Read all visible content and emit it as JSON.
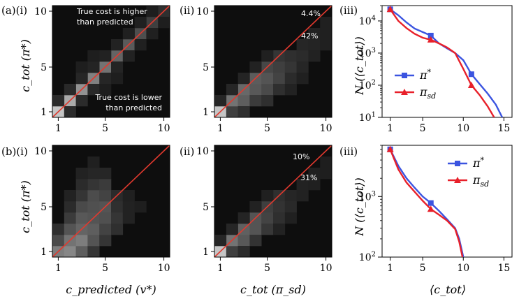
{
  "colors": {
    "pi_star": "#3b54e0",
    "pi_sd": "#e8202a",
    "diagonal": "#e0392e",
    "frame": "#000000"
  },
  "panel_labels": {
    "a_i": "(a)(i)",
    "a_ii": "(ii)",
    "a_iii": "(iii)",
    "b_i": "(b)(i)",
    "b_ii": "(ii)",
    "b_iii": "(iii)"
  },
  "axis_labels": {
    "ylabel_heat": "c_tot (π*)",
    "ylabel_line": "N (⟨c_tot⟩)",
    "xlabel_b_i": "c_predicted (v*)",
    "xlabel_b_ii": "c_tot (π_sd)",
    "xlabel_b_iii": "⟨c_tot⟩"
  },
  "heat_ticks": [
    "1",
    "5",
    "10"
  ],
  "line_xticks": [
    "1",
    "5",
    "10",
    "15"
  ],
  "annotations": {
    "a_i_upper": [
      "True cost is higher",
      "than predicted"
    ],
    "a_i_lower": [
      "True cost is lower",
      "than predicted"
    ],
    "a_ii_upper": "4.4%",
    "a_ii_lower": "42%",
    "b_ii_upper": "10%",
    "b_ii_lower": "31%"
  },
  "chart_data": [
    {
      "id": "a_i",
      "type": "heatmap",
      "title": "",
      "xlabel": "",
      "ylabel": "c_tot (π*)",
      "xlim": [
        0.5,
        10.5
      ],
      "ylim": [
        0.5,
        10.5
      ],
      "cells": [
        [
          1,
          1,
          0.85
        ],
        [
          2,
          2,
          0.72
        ],
        [
          3,
          3,
          0.6
        ],
        [
          4,
          4,
          0.52
        ],
        [
          5,
          5,
          0.45
        ],
        [
          6,
          6,
          0.38
        ],
        [
          7,
          7,
          0.33
        ],
        [
          8,
          8,
          0.27
        ],
        [
          9,
          9,
          0.2
        ],
        [
          10,
          10,
          0.12
        ],
        [
          1,
          2,
          0.1
        ],
        [
          2,
          1,
          0.1
        ],
        [
          2,
          3,
          0.09
        ],
        [
          3,
          2,
          0.1
        ],
        [
          3,
          4,
          0.08
        ],
        [
          4,
          3,
          0.09
        ],
        [
          4,
          5,
          0.07
        ],
        [
          5,
          4,
          0.08
        ],
        [
          5,
          6,
          0.06
        ],
        [
          6,
          5,
          0.07
        ],
        [
          6,
          7,
          0.06
        ],
        [
          7,
          6,
          0.06
        ],
        [
          7,
          8,
          0.05
        ],
        [
          8,
          7,
          0.05
        ],
        [
          8,
          9,
          0.05
        ],
        [
          9,
          8,
          0.05
        ],
        [
          9,
          10,
          0.04
        ],
        [
          10,
          9,
          0.04
        ],
        [
          3,
          5,
          0.04
        ],
        [
          5,
          3,
          0.04
        ],
        [
          4,
          6,
          0.04
        ],
        [
          6,
          4,
          0.04
        ]
      ]
    },
    {
      "id": "a_ii",
      "type": "heatmap",
      "title": "",
      "xlabel": "",
      "ylabel": "",
      "xlim": [
        0.5,
        10.5
      ],
      "ylim": [
        0.5,
        10.5
      ],
      "cells": [
        [
          1,
          1,
          0.85
        ],
        [
          2,
          1,
          0.2
        ],
        [
          2,
          2,
          0.45
        ],
        [
          3,
          2,
          0.35
        ],
        [
          3,
          3,
          0.4
        ],
        [
          4,
          3,
          0.32
        ],
        [
          4,
          4,
          0.34
        ],
        [
          5,
          3,
          0.25
        ],
        [
          5,
          4,
          0.3
        ],
        [
          5,
          5,
          0.24
        ],
        [
          6,
          4,
          0.22
        ],
        [
          6,
          5,
          0.2
        ],
        [
          6,
          6,
          0.15
        ],
        [
          7,
          5,
          0.15
        ],
        [
          7,
          6,
          0.12
        ],
        [
          8,
          6,
          0.1
        ],
        [
          8,
          7,
          0.08
        ],
        [
          9,
          7,
          0.07
        ],
        [
          9,
          8,
          0.06
        ],
        [
          10,
          8,
          0.05
        ],
        [
          10,
          9,
          0.05
        ],
        [
          1,
          2,
          0.08
        ],
        [
          2,
          3,
          0.08
        ],
        [
          3,
          1,
          0.12
        ],
        [
          3,
          4,
          0.07
        ],
        [
          4,
          2,
          0.18
        ],
        [
          4,
          5,
          0.06
        ],
        [
          5,
          2,
          0.12
        ],
        [
          5,
          6,
          0.05
        ],
        [
          6,
          3,
          0.12
        ],
        [
          7,
          4,
          0.1
        ],
        [
          8,
          5,
          0.08
        ],
        [
          9,
          6,
          0.06
        ],
        [
          10,
          7,
          0.05
        ],
        [
          7,
          3,
          0.06
        ],
        [
          8,
          4,
          0.05
        ]
      ]
    },
    {
      "id": "a_iii",
      "type": "line",
      "title": "",
      "xlabel": "",
      "ylabel": "N (⟨c_tot⟩)",
      "xlim": [
        0,
        16
      ],
      "ylim": [
        10,
        30000
      ],
      "yscale": "log",
      "xticks": [
        1,
        5,
        10,
        15
      ],
      "yticks": [
        10,
        100,
        1000,
        10000
      ],
      "legend": "center-left",
      "series": [
        {
          "name": "π*",
          "marker": "square",
          "x": [
            1,
            2,
            3,
            4,
            5,
            6,
            7,
            8,
            9,
            10,
            11,
            12,
            13,
            14,
            14.8
          ],
          "y": [
            23000,
            15000,
            9000,
            5800,
            4500,
            3500,
            2000,
            1400,
            1000,
            600,
            220,
            110,
            55,
            25,
            10
          ],
          "markers_at": [
            1,
            6,
            11
          ]
        },
        {
          "name": "π_sd",
          "marker": "triangle",
          "x": [
            1,
            2,
            3,
            4,
            5,
            6,
            7,
            8,
            9,
            10,
            11,
            12,
            13,
            13.8
          ],
          "y": [
            23000,
            10000,
            6000,
            4000,
            3000,
            2600,
            2000,
            1500,
            1000,
            320,
            100,
            50,
            22,
            10
          ],
          "markers_at": [
            1,
            6,
            11
          ]
        }
      ]
    },
    {
      "id": "b_i",
      "type": "heatmap",
      "title": "",
      "xlabel": "c_predicted (v*)",
      "ylabel": "c_tot (π*)",
      "xlim": [
        0.5,
        10.5
      ],
      "ylim": [
        0.5,
        10.5
      ],
      "cells": [
        [
          1,
          1,
          0.5
        ],
        [
          1,
          2,
          0.25
        ],
        [
          1,
          3,
          0.12
        ],
        [
          2,
          1,
          0.55
        ],
        [
          2,
          2,
          0.45
        ],
        [
          2,
          3,
          0.3
        ],
        [
          2,
          4,
          0.18
        ],
        [
          3,
          1,
          0.35
        ],
        [
          3,
          2,
          0.5
        ],
        [
          3,
          3,
          0.38
        ],
        [
          3,
          4,
          0.32
        ],
        [
          3,
          5,
          0.25
        ],
        [
          3,
          6,
          0.15
        ],
        [
          4,
          1,
          0.15
        ],
        [
          4,
          2,
          0.3
        ],
        [
          4,
          3,
          0.35
        ],
        [
          4,
          4,
          0.3
        ],
        [
          4,
          5,
          0.28
        ],
        [
          4,
          6,
          0.26
        ],
        [
          4,
          7,
          0.15
        ],
        [
          5,
          2,
          0.15
        ],
        [
          5,
          3,
          0.22
        ],
        [
          5,
          4,
          0.28
        ],
        [
          5,
          5,
          0.3
        ],
        [
          5,
          6,
          0.22
        ],
        [
          5,
          7,
          0.18
        ],
        [
          6,
          3,
          0.12
        ],
        [
          6,
          4,
          0.15
        ],
        [
          6,
          5,
          0.12
        ],
        [
          6,
          6,
          0.1
        ],
        [
          7,
          4,
          0.06
        ],
        [
          7,
          5,
          0.06
        ],
        [
          7,
          6,
          0.05
        ],
        [
          8,
          5,
          0.04
        ],
        [
          2,
          5,
          0.1
        ],
        [
          3,
          7,
          0.1
        ],
        [
          4,
          8,
          0.08
        ],
        [
          5,
          8,
          0.08
        ],
        [
          3,
          8,
          0.06
        ],
        [
          4,
          9,
          0.05
        ],
        [
          2,
          6,
          0.06
        ]
      ]
    },
    {
      "id": "b_ii",
      "type": "heatmap",
      "title": "",
      "xlabel": "c_tot (π_sd)",
      "ylabel": "",
      "xlim": [
        0.5,
        10.5
      ],
      "ylim": [
        0.5,
        10.5
      ],
      "cells": [
        [
          1,
          1,
          0.85
        ],
        [
          2,
          1,
          0.2
        ],
        [
          2,
          2,
          0.45
        ],
        [
          3,
          2,
          0.32
        ],
        [
          3,
          3,
          0.36
        ],
        [
          4,
          3,
          0.3
        ],
        [
          4,
          4,
          0.3
        ],
        [
          5,
          4,
          0.22
        ],
        [
          5,
          5,
          0.2
        ],
        [
          6,
          5,
          0.14
        ],
        [
          6,
          6,
          0.12
        ],
        [
          7,
          6,
          0.08
        ],
        [
          8,
          7,
          0.06
        ],
        [
          9,
          8,
          0.05
        ],
        [
          10,
          9,
          0.04
        ],
        [
          1,
          2,
          0.08
        ],
        [
          2,
          3,
          0.08
        ],
        [
          3,
          4,
          0.07
        ],
        [
          4,
          5,
          0.06
        ],
        [
          5,
          6,
          0.05
        ],
        [
          3,
          1,
          0.1
        ],
        [
          4,
          2,
          0.14
        ],
        [
          5,
          3,
          0.16
        ],
        [
          6,
          4,
          0.12
        ],
        [
          7,
          5,
          0.09
        ],
        [
          8,
          6,
          0.06
        ],
        [
          9,
          7,
          0.05
        ],
        [
          10,
          8,
          0.04
        ],
        [
          6,
          3,
          0.06
        ],
        [
          7,
          4,
          0.05
        ]
      ]
    },
    {
      "id": "b_iii",
      "type": "line",
      "title": "",
      "xlabel": "⟨c_tot⟩",
      "ylabel": "N (⟨c_tot⟩)",
      "xlim": [
        0,
        16
      ],
      "ylim": [
        100,
        7000
      ],
      "yscale": "log",
      "xticks": [
        1,
        5,
        10,
        15
      ],
      "yticks": [
        100,
        1000
      ],
      "legend": "top-right",
      "series": [
        {
          "name": "π*",
          "marker": "square",
          "x": [
            1,
            2,
            3,
            4,
            5,
            6,
            7,
            8,
            9,
            9.5,
            10
          ],
          "y": [
            6000,
            3200,
            2000,
            1400,
            1000,
            780,
            580,
            420,
            300,
            200,
            100
          ],
          "markers_at": [
            1,
            6
          ]
        },
        {
          "name": "π_sd",
          "marker": "triangle",
          "x": [
            1,
            2,
            3,
            4,
            5,
            6,
            7,
            8,
            9,
            9.5,
            9.9
          ],
          "y": [
            6000,
            2800,
            1700,
            1200,
            850,
            620,
            500,
            400,
            290,
            180,
            100
          ],
          "markers_at": [
            1,
            6
          ]
        }
      ]
    }
  ]
}
